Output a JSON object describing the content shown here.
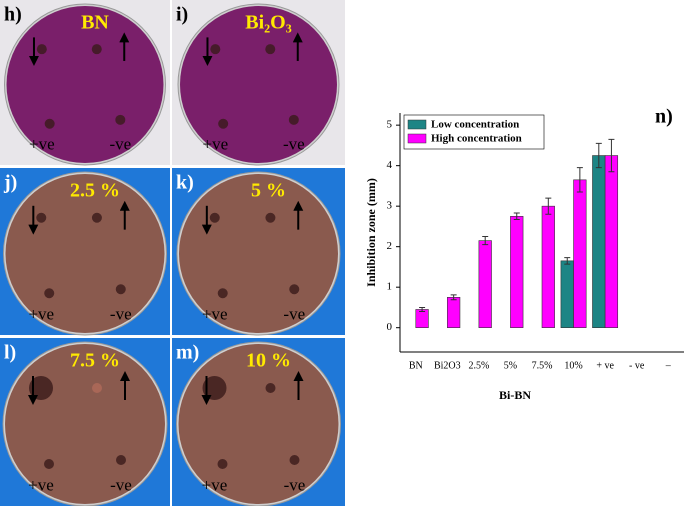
{
  "panels": [
    {
      "label": "h)",
      "title": "BN",
      "pos": "+ve",
      "neg": "-ve"
    },
    {
      "label": "i)",
      "title": "Bi₂O₃",
      "pos": "+ve",
      "neg": "-ve"
    },
    {
      "label": "j)",
      "title": "2.5 %",
      "pos": "+ve",
      "neg": "-ve"
    },
    {
      "label": "k)",
      "title": "5 %",
      "pos": "+ve",
      "neg": "-ve"
    },
    {
      "label": "l)",
      "title": "7.5 %",
      "pos": "+ve",
      "neg": "-ve"
    },
    {
      "label": "m)",
      "title": "10 %",
      "pos": "+ve",
      "neg": "-ve"
    }
  ],
  "chart_data": {
    "type": "bar",
    "panel_label": "n)",
    "x_label": "Bi-BN",
    "y_label": "Inhibition zone (mm)",
    "categories": [
      "BN",
      "Bi2O3",
      "2.5%",
      "5%",
      "7.5%",
      "10%",
      "+ ve",
      "- ve",
      "–"
    ],
    "series": [
      {
        "name": "Low concentration",
        "color": "#1d8585",
        "values": [
          0,
          0,
          0,
          0,
          0,
          1.65,
          4.25,
          0,
          null
        ],
        "errors": [
          0,
          0,
          0,
          0,
          0,
          0.08,
          0.3,
          0,
          null
        ]
      },
      {
        "name": "High concentration",
        "color": "#ff00ff",
        "values": [
          0.45,
          0.75,
          2.15,
          2.75,
          3.0,
          3.65,
          4.25,
          0,
          null
        ],
        "errors": [
          0.05,
          0.06,
          0.1,
          0.08,
          0.2,
          0.3,
          0.4,
          0,
          null
        ]
      }
    ],
    "ylim": [
      -0.6,
      5.3
    ],
    "yticks": [
      0,
      1,
      2,
      3,
      4,
      5
    ],
    "legend": "upper left"
  }
}
